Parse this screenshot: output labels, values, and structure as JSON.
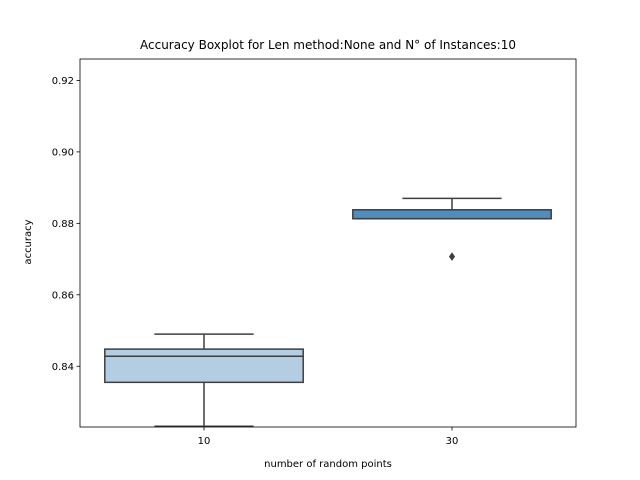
{
  "chart_data": {
    "type": "boxplot",
    "title": "Accuracy Boxplot for Len method:None and N° of Instances:10",
    "xlabel": "number of random points",
    "ylabel": "accuracy",
    "ylim": [
      0.823,
      0.926
    ],
    "yticks": [
      0.84,
      0.86,
      0.88,
      0.9,
      0.92
    ],
    "ytick_labels": [
      "0.84",
      "0.86",
      "0.88",
      "0.90",
      "0.92"
    ],
    "categories": [
      "10",
      "30"
    ],
    "grid": false,
    "boxes": [
      {
        "category": "10",
        "whisker_low": 0.8232,
        "q1": 0.8355,
        "median": 0.8428,
        "q3": 0.8448,
        "whisker_high": 0.849,
        "outliers": [],
        "color": "#b3cde3"
      },
      {
        "category": "30",
        "whisker_low": 0.8813,
        "q1": 0.8813,
        "median": 0.8813,
        "q3": 0.8838,
        "whisker_high": 0.887,
        "outliers": [
          0.8707
        ],
        "color": "#4d8dbf"
      }
    ]
  }
}
